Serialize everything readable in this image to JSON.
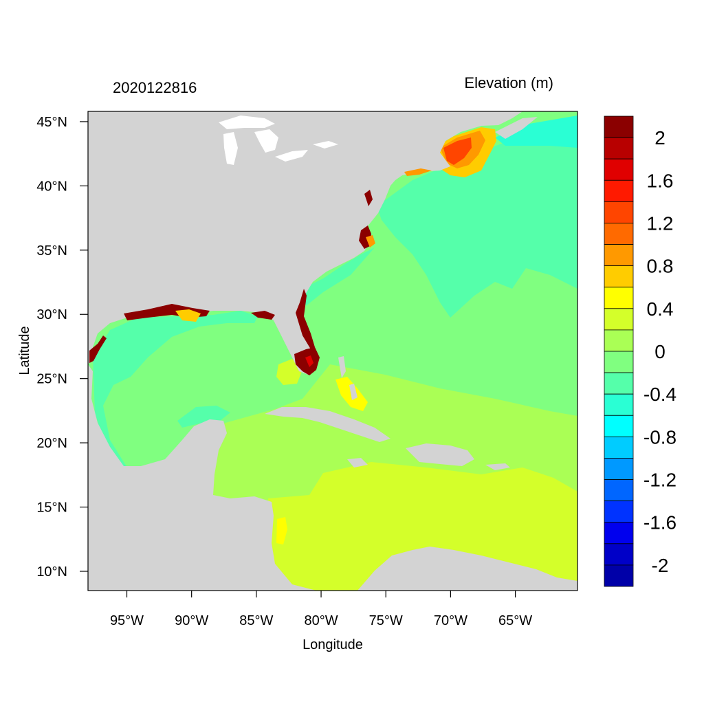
{
  "title_left": "2020122816",
  "title_right": "Elevation (m)",
  "x_axis": {
    "label": "Longitude",
    "range_deg": [
      -98,
      -60.2
    ],
    "ticks": [
      {
        "value": -95,
        "label": "95°W"
      },
      {
        "value": -90,
        "label": "90°W"
      },
      {
        "value": -85,
        "label": "85°W"
      },
      {
        "value": -80,
        "label": "80°W"
      },
      {
        "value": -75,
        "label": "75°W"
      },
      {
        "value": -70,
        "label": "70°W"
      },
      {
        "value": -65,
        "label": "65°W"
      }
    ]
  },
  "y_axis": {
    "label": "Latitude",
    "range_deg": [
      8.5,
      45.8
    ],
    "ticks": [
      {
        "value": 45,
        "label": "45°N"
      },
      {
        "value": 40,
        "label": "40°N"
      },
      {
        "value": 35,
        "label": "35°N"
      },
      {
        "value": 30,
        "label": "30°N"
      },
      {
        "value": 25,
        "label": "25°N"
      },
      {
        "value": 20,
        "label": "20°N"
      },
      {
        "value": 15,
        "label": "15°N"
      },
      {
        "value": 10,
        "label": "10°N"
      }
    ]
  },
  "colorbar": {
    "colors_top_to_bottom": [
      "#8b0000",
      "#b80000",
      "#e00000",
      "#ff1a00",
      "#ff4500",
      "#ff6a00",
      "#ff9900",
      "#ffcc00",
      "#ffff00",
      "#d4ff2a",
      "#aaff55",
      "#80ff80",
      "#55ffaa",
      "#2affd4",
      "#00ffff",
      "#00ccff",
      "#0099ff",
      "#0066ff",
      "#0033ff",
      "#0000ee",
      "#0000c8",
      "#0000a8"
    ],
    "labels": [
      "2",
      "1.6",
      "1.2",
      "0.8",
      "0.4",
      "0",
      "-0.4",
      "-0.8",
      "-1.2",
      "-1.6",
      "-2"
    ]
  },
  "colors": {
    "land": "#d3d3d3",
    "lakes": "#ffffff",
    "ocean_neutral": "#55ffaa",
    "ocean_low": "#2affd4",
    "ocean_zero": "#80ff80",
    "ocean_pos": "#aaff55",
    "ocean_caribbean": "#d4ff2a"
  }
}
